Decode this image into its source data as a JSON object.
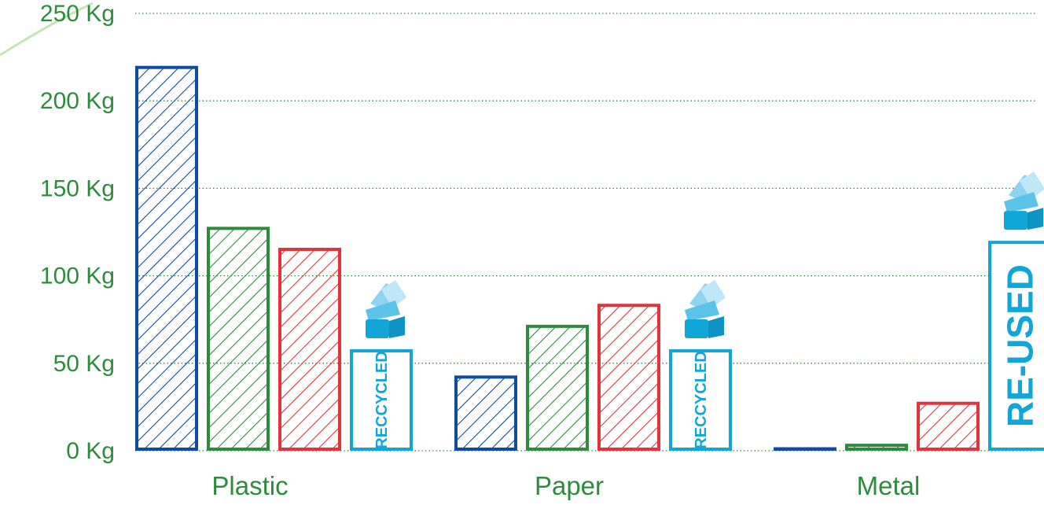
{
  "chart_data": {
    "type": "bar",
    "categories": [
      "Plastic",
      "Paper",
      "Metal"
    ],
    "series": [
      {
        "values": [
          220,
          43,
          2
        ],
        "color": "#0d4c9e",
        "fill": "hatched"
      },
      {
        "values": [
          128,
          72,
          4
        ],
        "color": "#2e8b3e",
        "fill": "hatched"
      },
      {
        "values": [
          116,
          84,
          28
        ],
        "color": "#e3343c",
        "fill": "hatched"
      },
      {
        "values": [
          58,
          58,
          120
        ],
        "color": "#12a6d8",
        "fill": "outline",
        "labels": [
          "RECCYCLED",
          "RECCYCLED",
          "RE-USED"
        ]
      }
    ],
    "y_ticks": [
      "0 Kg",
      "50 Kg",
      "100 Kg",
      "150 Kg",
      "200 Kg",
      "250 Kg"
    ],
    "ylim": [
      0,
      250
    ],
    "grid": "dotted horizontal",
    "label_color": "#2e8b3e",
    "icon": "recycled-material-icon"
  }
}
